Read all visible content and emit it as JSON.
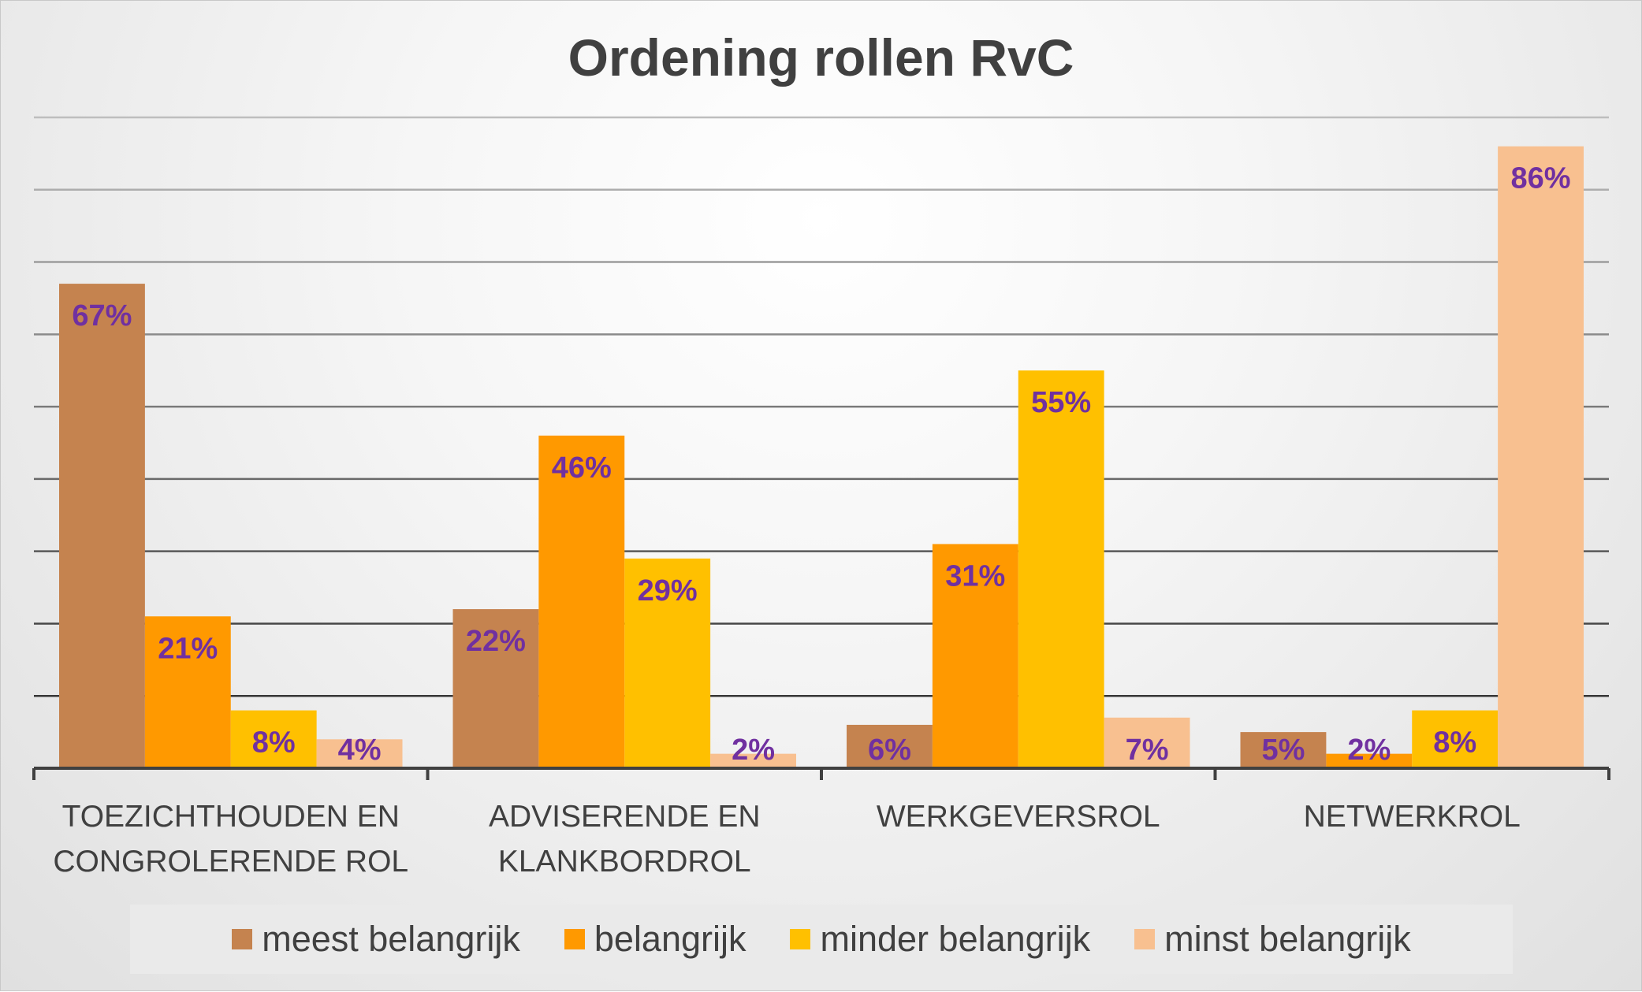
{
  "chart_data": {
    "type": "bar",
    "title": "Ordening rollen RvC",
    "categories": [
      [
        "TOEZICHTHOUDEN EN",
        "CONGROLERENDE ROL"
      ],
      [
        "ADVISERENDE EN",
        "KLANKBORDROL"
      ],
      [
        "WERKGEVERSROL"
      ],
      [
        "NETWERKROL"
      ]
    ],
    "series": [
      {
        "name": "meest belangrijk",
        "color": "#C5834F",
        "values": [
          67,
          22,
          6,
          5
        ]
      },
      {
        "name": "belangrijk",
        "color": "#FF9900",
        "values": [
          21,
          46,
          31,
          2
        ]
      },
      {
        "name": "minder belangrijk",
        "color": "#FFC000",
        "values": [
          8,
          29,
          55,
          8
        ]
      },
      {
        "name": "minst belangrijk",
        "color": "#F8C090",
        "values": [
          4,
          2,
          7,
          86
        ]
      }
    ],
    "value_suffix": "%",
    "ylim": [
      0,
      90
    ],
    "grid": true,
    "legend_position": "bottom",
    "data_label_color": "#7030A0",
    "xlabel": "",
    "ylabel": ""
  }
}
